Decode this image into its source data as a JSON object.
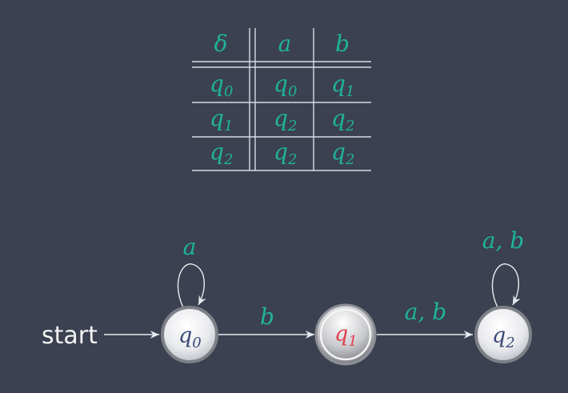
{
  "table": {
    "header": [
      "δ",
      "a",
      "b"
    ],
    "rows": [
      {
        "state": "q",
        "state_sub": "0",
        "a": "q",
        "a_sub": "0",
        "b": "q",
        "b_sub": "1"
      },
      {
        "state": "q",
        "state_sub": "1",
        "a": "q",
        "a_sub": "2",
        "b": "q",
        "b_sub": "2"
      },
      {
        "state": "q",
        "state_sub": "2",
        "a": "q",
        "a_sub": "2",
        "b": "q",
        "b_sub": "2"
      }
    ]
  },
  "automaton": {
    "start_label": "start",
    "states": [
      {
        "name": "q",
        "sub": "0",
        "accepting": false,
        "color": "#3b4a78"
      },
      {
        "name": "q",
        "sub": "1",
        "accepting": true,
        "color": "#e0414f"
      },
      {
        "name": "q",
        "sub": "2",
        "accepting": false,
        "color": "#3b4a78"
      }
    ],
    "loops": [
      {
        "label": "a"
      },
      {
        "label": "a, b"
      }
    ],
    "edges": [
      {
        "label": "b"
      },
      {
        "label": "a, b"
      }
    ]
  },
  "colors": {
    "background": "#3b4150",
    "label": "#1fb39c",
    "lines": "#d8dce3"
  }
}
